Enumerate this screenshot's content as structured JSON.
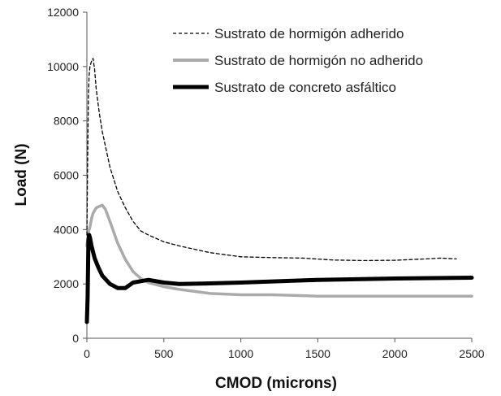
{
  "chart_data": {
    "type": "line",
    "xlabel": "CMOD (microns)",
    "ylabel": "Load (N)",
    "xlim": [
      0,
      2500
    ],
    "ylim": [
      0,
      12000
    ],
    "x_ticks": [
      0,
      500,
      1000,
      1500,
      2000,
      2500
    ],
    "y_ticks": [
      0,
      2000,
      4000,
      6000,
      8000,
      10000,
      12000
    ],
    "x_tick_labels": [
      "0",
      "500",
      "1000",
      "1500",
      "2000",
      "2500"
    ],
    "y_tick_labels": [
      "0",
      "2000",
      "4000",
      "6000",
      "8000",
      "10000",
      "12000"
    ],
    "grid": false,
    "legend": "top-right",
    "series": [
      {
        "name": "Sustrato de hormigón adherido",
        "style": "dashed",
        "color": "#000000",
        "x": [
          0,
          5,
          10,
          15,
          20,
          30,
          40,
          50,
          60,
          80,
          100,
          150,
          200,
          250,
          300,
          350,
          400,
          500,
          600,
          800,
          1000,
          1200,
          1400,
          1600,
          1800,
          2000,
          2200,
          2300,
          2400
        ],
        "y": [
          3800,
          6500,
          9000,
          9700,
          10000,
          10200,
          10300,
          9900,
          9200,
          8300,
          7600,
          6300,
          5400,
          4800,
          4300,
          3950,
          3800,
          3550,
          3400,
          3150,
          3000,
          2970,
          2950,
          2880,
          2860,
          2870,
          2920,
          2950,
          2920
        ]
      },
      {
        "name": "Sustrato de hormigón no adherido",
        "style": "solid",
        "color": "#aaaaaa",
        "x": [
          0,
          10,
          20,
          30,
          40,
          60,
          80,
          100,
          120,
          150,
          200,
          250,
          300,
          350,
          400,
          500,
          600,
          800,
          1000,
          1200,
          1500,
          2000,
          2500
        ],
        "y": [
          3400,
          3900,
          4100,
          4400,
          4600,
          4800,
          4850,
          4900,
          4750,
          4300,
          3500,
          2900,
          2450,
          2200,
          2050,
          1900,
          1800,
          1650,
          1600,
          1600,
          1550,
          1550,
          1550
        ]
      },
      {
        "name": "Sustrato de concreto asfáltico",
        "style": "solid",
        "color": "#000000",
        "x": [
          0,
          5,
          10,
          15,
          20,
          30,
          50,
          75,
          100,
          150,
          200,
          250,
          300,
          350,
          400,
          450,
          500,
          600,
          800,
          1000,
          1500,
          2000,
          2500
        ],
        "y": [
          600,
          1500,
          3600,
          3800,
          3700,
          3400,
          2950,
          2600,
          2300,
          2000,
          1850,
          1850,
          2050,
          2100,
          2150,
          2100,
          2050,
          2000,
          2020,
          2050,
          2150,
          2200,
          2230
        ]
      }
    ]
  }
}
